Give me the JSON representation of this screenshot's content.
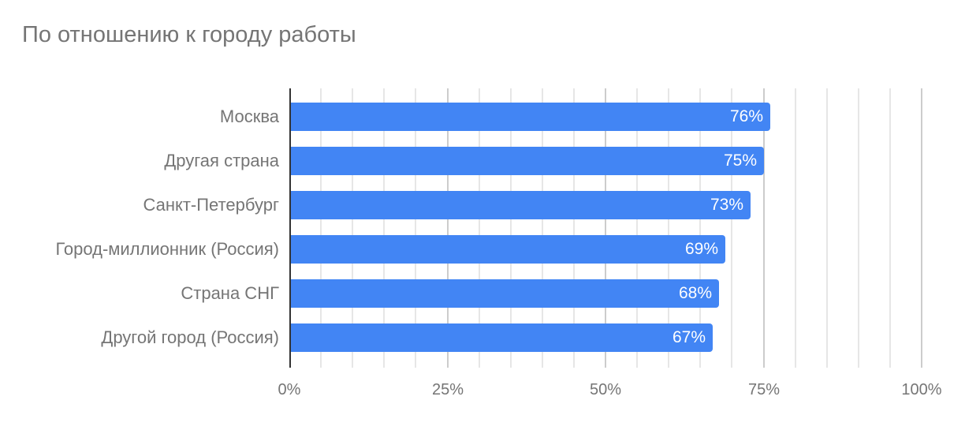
{
  "title": "По отношению к городу работы",
  "colors": {
    "bar": "#4285f4",
    "text": "#757575",
    "grid_minor": "#e6e6e6",
    "grid_major": "#cccccc",
    "axis": "#333333"
  },
  "categories": [
    {
      "label": "Москва",
      "value": 76,
      "value_label": "76%"
    },
    {
      "label": "Другая страна",
      "value": 75,
      "value_label": "75%"
    },
    {
      "label": "Санкт-Петербург",
      "value": 73,
      "value_label": "73%"
    },
    {
      "label": "Город-миллионник (Россия)",
      "value": 69,
      "value_label": "69%"
    },
    {
      "label": "Страна СНГ",
      "value": 68,
      "value_label": "68%"
    },
    {
      "label": "Другой город (Россия)",
      "value": 67,
      "value_label": "67%"
    }
  ],
  "x_axis": {
    "ticks": [
      "0%",
      "25%",
      "50%",
      "75%",
      "100%"
    ]
  },
  "chart_data": {
    "type": "bar",
    "orientation": "horizontal",
    "title": "По отношению к городу работы",
    "categories": [
      "Москва",
      "Другая страна",
      "Санкт-Петербург",
      "Город-миллионник (Россия)",
      "Страна СНГ",
      "Другой город (Россия)"
    ],
    "values": [
      76,
      75,
      73,
      69,
      68,
      67
    ],
    "data_labels": [
      "76%",
      "75%",
      "73%",
      "69%",
      "68%",
      "67%"
    ],
    "xlabel": "",
    "ylabel": "",
    "xlim": [
      0,
      100
    ],
    "x_ticks": [
      "0%",
      "25%",
      "50%",
      "75%",
      "100%"
    ],
    "grid": true,
    "legend": "none"
  }
}
